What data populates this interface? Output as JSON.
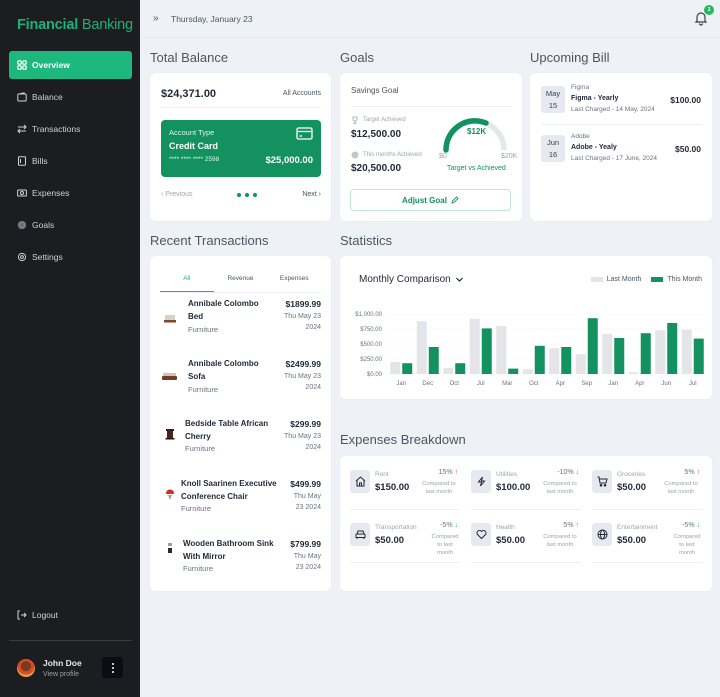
{
  "app": {
    "brand_bold": "Financial",
    "brand_rest": " Banking"
  },
  "sidebar": {
    "items": [
      {
        "label": "Overview",
        "icon": "grid-icon",
        "active": true
      },
      {
        "label": "Balance",
        "icon": "wallet-icon"
      },
      {
        "label": "Transactions",
        "icon": "transfer-icon"
      },
      {
        "label": "Bills",
        "icon": "bill-icon"
      },
      {
        "label": "Expenses",
        "icon": "cash-icon"
      },
      {
        "label": "Goals",
        "icon": "target-icon"
      },
      {
        "label": "Settings",
        "icon": "gear-icon"
      }
    ],
    "logout": "Logout",
    "user": {
      "name": "John Doe",
      "link": "View profile"
    }
  },
  "topbar": {
    "collapse": "»",
    "date": "Thursday, January 23",
    "notifications": "3"
  },
  "sections": {
    "total_balance": "Total Balance",
    "goals": "Goals",
    "upcoming_bill": "Upcoming Bill",
    "recent_transactions": "Recent Transactions",
    "statistics": "Statistics",
    "expenses_breakdown": "Expenses Breakdown"
  },
  "balance": {
    "amount": "$24,371.00",
    "all_accounts": "All Accounts",
    "card": {
      "type_label": "Account Type",
      "type": "Credit Card",
      "number": "**** **** **** 2598",
      "balance": "$25,000.00"
    },
    "prev": "‹ Previous",
    "next": "Next ›"
  },
  "goals": {
    "title": "Savings Goal",
    "target_label": "Target Achieved",
    "target_value": "$12,500.00",
    "month_label": "This months Achieved",
    "month_value": "$20,500.00",
    "gauge_value": "$12K",
    "gauge_min": "$0",
    "gauge_max": "$20K",
    "gauge_caption": "Target vs Achieved",
    "adjust": "Adjust Goal"
  },
  "bills": [
    {
      "month": "May",
      "day": "15",
      "vendor": "Figma",
      "name": "Figma - Yearly",
      "last": "Last Charged - 14 May, 2024",
      "amount": "$100.00"
    },
    {
      "month": "Jun",
      "day": "16",
      "vendor": "Adobe",
      "name": "Adobe - Yealy",
      "last": "Last Charged - 17 June, 2024",
      "amount": "$50.00"
    }
  ],
  "transactions": {
    "tabs": [
      "All",
      "Revenue",
      "Expenses"
    ],
    "items": [
      {
        "name1": "Annibale Colombo",
        "name2": "Bed",
        "category": "Furniture",
        "amount": "$1899.99",
        "date1": "Thu May 23",
        "date2": "2024"
      },
      {
        "name1": "Annibale Colombo",
        "name2": "Sofa",
        "category": "Furniture",
        "amount": "$2499.99",
        "date1": "Thu May 23",
        "date2": "2024"
      },
      {
        "name1": "Bedside Table African",
        "name2": "Cherry",
        "category": "Furniture",
        "amount": "$299.99",
        "date1": "Thu May 23",
        "date2": "2024"
      },
      {
        "name1": "Knoll Saarinen Executive",
        "name2": "Conference Chair",
        "category": "Furniture",
        "amount": "$499.99",
        "date1": "Thu May",
        "date2": "23 2024"
      },
      {
        "name1": "Wooden Bathroom Sink",
        "name2": "With Mirror",
        "category": "Furniture",
        "amount": "$799.99",
        "date1": "Thu May",
        "date2": "23 2024"
      }
    ]
  },
  "statistics": {
    "title": "Monthly Comparison",
    "legend": {
      "last": "Last Month",
      "this": "This Month"
    },
    "colors": {
      "last": "#e3e5e8",
      "this": "#13925f"
    }
  },
  "chart_data": {
    "type": "bar",
    "title": "Monthly Comparison",
    "categories": [
      "Jan",
      "Dec",
      "Oct",
      "Jul",
      "Mar",
      "Oct",
      "Apr",
      "Sep",
      "Jan",
      "Apr",
      "Jun",
      "Jul"
    ],
    "series": [
      {
        "name": "Last Month",
        "values": [
          200,
          880,
          100,
          920,
          800,
          80,
          430,
          330,
          670,
          30,
          730,
          740
        ]
      },
      {
        "name": "This Month",
        "values": [
          180,
          450,
          180,
          760,
          90,
          470,
          450,
          930,
          600,
          680,
          850,
          590
        ]
      }
    ],
    "yticks": [
      "$0.00",
      "$250.00",
      "$500.00",
      "$750.00",
      "$1,000.00"
    ],
    "ylim": [
      0,
      1000
    ],
    "legend_position": "top-right",
    "grid": true
  },
  "expenses": [
    {
      "name": "Rent",
      "amount": "$150.00",
      "pct": "15%",
      "dir": "up",
      "cmp": "Compared to last month",
      "icon": "home-icon"
    },
    {
      "name": "Utilities",
      "amount": "$100.00",
      "pct": "-10%",
      "dir": "down",
      "cmp": "Compared to last month",
      "icon": "lightning-icon"
    },
    {
      "name": "Groceries",
      "amount": "$50.00",
      "pct": "5%",
      "dir": "up",
      "cmp": "Compared to last month",
      "icon": "cart-icon"
    },
    {
      "name": "Transportation",
      "amount": "$50.00",
      "pct": "-5%",
      "dir": "down",
      "cmp": "Compared to last month",
      "icon": "car-icon"
    },
    {
      "name": "Health",
      "amount": "$50.00",
      "pct": "5%",
      "dir": "up",
      "cmp": "Compared to last month",
      "icon": "heart-icon"
    },
    {
      "name": "Entertainment",
      "amount": "$50.00",
      "pct": "-5%",
      "dir": "down",
      "cmp": "Compared to last month",
      "icon": "globe-icon"
    }
  ]
}
